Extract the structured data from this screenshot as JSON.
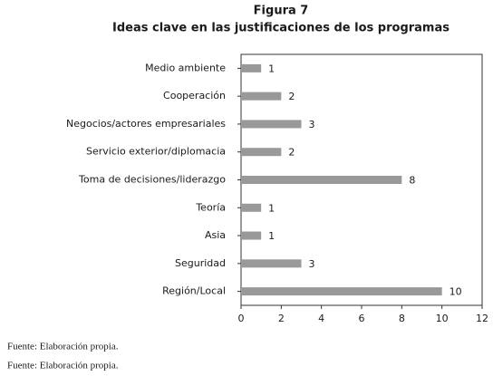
{
  "chart_data": {
    "type": "bar",
    "orientation": "horizontal",
    "title": "Figura 7",
    "subtitle": "Ideas clave en las justificaciones de los programas",
    "categories": [
      "Medio ambiente",
      "Cooperación",
      "Negocios/actores empresariales",
      "Servicio exterior/diplomacia",
      "Toma de decisiones/liderazgo",
      "Teoría",
      "Asia",
      "Seguridad",
      "Región/Local"
    ],
    "values": [
      1,
      2,
      3,
      2,
      8,
      1,
      1,
      3,
      10
    ],
    "color": "#999999",
    "xlim": [
      0,
      12
    ],
    "xticks": [
      0,
      2,
      4,
      6,
      8,
      10,
      12
    ],
    "grid": false,
    "source": [
      "Fuente: Elaboración propia.",
      "Fuente: Elaboración propia."
    ]
  }
}
